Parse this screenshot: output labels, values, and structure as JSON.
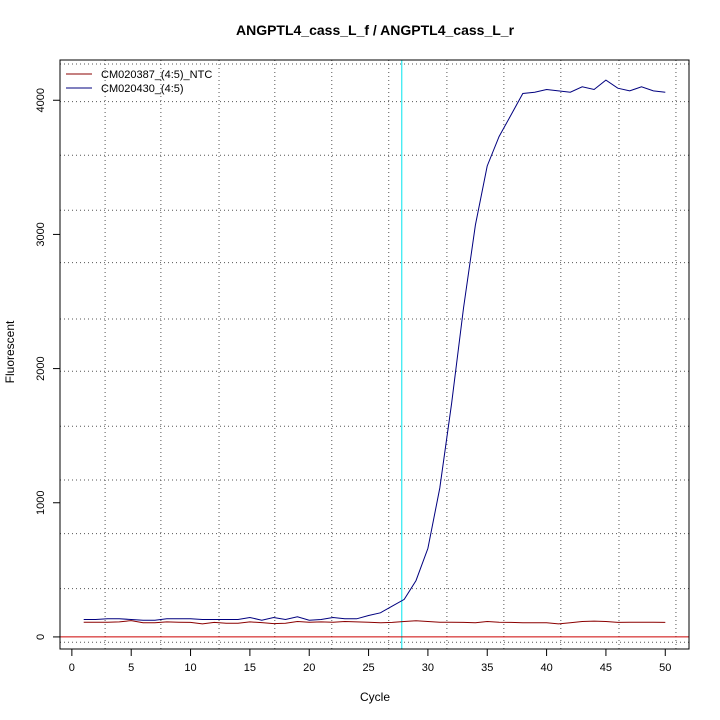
{
  "chart_data": {
    "type": "line",
    "title": "ANGPTL4_cass_L_f / ANGPTL4_cass_L_r",
    "xlabel": "Cycle",
    "ylabel": "Fluorescent",
    "xlim": [
      -1,
      52
    ],
    "ylim": [
      -90,
      4300
    ],
    "x_ticks": [
      0,
      5,
      10,
      15,
      20,
      25,
      30,
      35,
      40,
      45,
      50
    ],
    "y_ticks": [
      0,
      1000,
      2000,
      3000,
      4000
    ],
    "x_grid": [
      2.8,
      7.5,
      12.4,
      17.1,
      21.9,
      26.7,
      31.6,
      36.4,
      41.2,
      46.1,
      50.9
    ],
    "y_grid": [
      -40,
      360,
      770,
      1170,
      1570,
      1980,
      2370,
      2790,
      3180,
      3590,
      3990,
      4270
    ],
    "grid": true,
    "legend_position": "top-left",
    "threshold_x": 27.8,
    "threshold_color": "#00e5ee",
    "baseline_y": 0,
    "baseline_color": "#cc0000",
    "series": [
      {
        "name": "CM020387_(4:5)_NTC",
        "color": "#8b0000",
        "x": [
          1,
          2,
          3,
          4,
          5,
          6,
          7,
          8,
          9,
          10,
          11,
          12,
          13,
          14,
          15,
          16,
          17,
          18,
          19,
          20,
          21,
          22,
          23,
          24,
          25,
          26,
          27,
          28,
          29,
          30,
          31,
          32,
          33,
          34,
          35,
          36,
          37,
          38,
          39,
          40,
          41,
          42,
          43,
          44,
          45,
          46,
          47,
          48,
          49,
          50
        ],
        "y": [
          110,
          110,
          110,
          112,
          122,
          105,
          105,
          112,
          110,
          108,
          97,
          108,
          102,
          102,
          112,
          107,
          99,
          102,
          115,
          110,
          112,
          110,
          115,
          112,
          110,
          105,
          108,
          115,
          120,
          115,
          110,
          110,
          108,
          105,
          115,
          110,
          108,
          105,
          105,
          105,
          97,
          105,
          115,
          118,
          115,
          108,
          110,
          110,
          110,
          108
        ]
      },
      {
        "name": "CM020430_(4:5)",
        "color": "#00007f",
        "x": [
          1,
          2,
          3,
          4,
          5,
          6,
          7,
          8,
          9,
          10,
          11,
          12,
          13,
          14,
          15,
          16,
          17,
          18,
          19,
          20,
          21,
          22,
          23,
          24,
          25,
          26,
          27,
          28,
          29,
          30,
          31,
          32,
          33,
          34,
          35,
          36,
          37,
          38,
          39,
          40,
          41,
          42,
          43,
          44,
          45,
          46,
          47,
          48,
          49,
          50
        ],
        "y": [
          130,
          130,
          135,
          135,
          130,
          125,
          125,
          135,
          135,
          135,
          130,
          130,
          130,
          130,
          145,
          125,
          145,
          130,
          150,
          125,
          130,
          145,
          135,
          135,
          160,
          180,
          230,
          280,
          420,
          660,
          1110,
          1740,
          2450,
          3070,
          3510,
          3730,
          3890,
          4050,
          4060,
          4080,
          4070,
          4060,
          4100,
          4080,
          4150,
          4090,
          4070,
          4100,
          4070,
          4060
        ]
      }
    ]
  }
}
